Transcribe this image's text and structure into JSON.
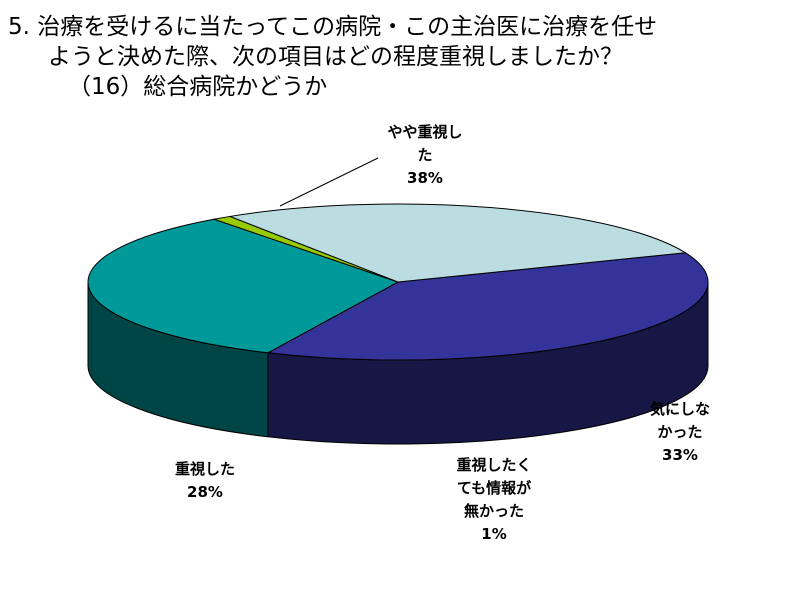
{
  "chart_data": {
    "type": "pie",
    "title_lines": [
      "5. 治療を受けるに当たってこの病院・この主治医に治療を任せ",
      "ようと決めた際、次の項目はどの程度重視しましたか？",
      "（16）総合病院かどうか"
    ],
    "three_d": true,
    "slices": [
      {
        "name": "やや重視した",
        "value": 38,
        "value_label": "38%",
        "label_lines": [
          "やや重視し",
          "た"
        ],
        "color": "#333399"
      },
      {
        "name": "気にしなかった",
        "value": 33,
        "value_label": "33%",
        "label_lines": [
          "気にしな",
          "かった"
        ],
        "color": "#009999"
      },
      {
        "name": "重視したくても情報が無かった",
        "value": 1,
        "value_label": "1%",
        "label_lines": [
          "重視したく",
          "ても情報が",
          "無かった"
        ],
        "color": "#99CC00"
      },
      {
        "name": "重視した",
        "value": 28,
        "value_label": "28%",
        "label_lines": [
          "重視した"
        ],
        "color": "#BBDDE2"
      }
    ]
  }
}
